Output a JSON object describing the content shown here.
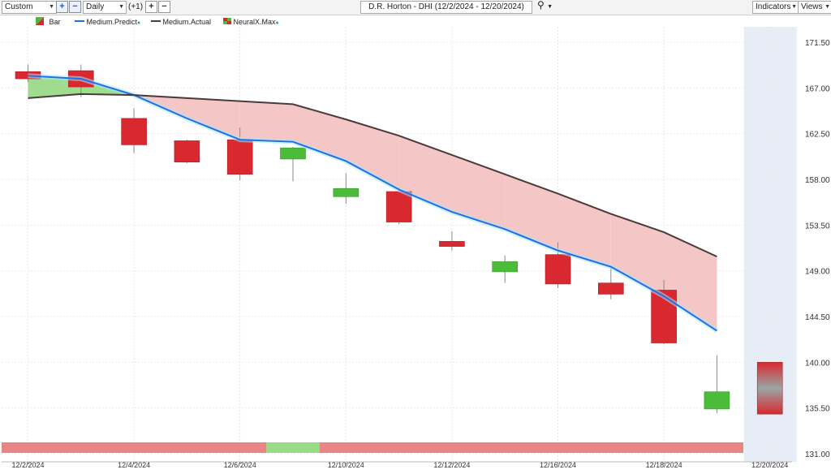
{
  "toolbar": {
    "range_select": "Custom",
    "interval_select": "Daily",
    "offset_label": "(+1)",
    "symbol_title": "D.R. Horton - DHI (12/2/2024 - 12/20/2024)",
    "indicators_label": "Indicators",
    "views_label": "Views",
    "zoom_in_icon": "plus-icon",
    "zoom_out_icon": "minus-icon",
    "search_icon": "magnifier-icon"
  },
  "legend": [
    {
      "label": "Bar",
      "swatch": "bar-icon",
      "color": "#d9282f"
    },
    {
      "label": "Medium.Predict",
      "swatch": "line",
      "color": "#1f6fe5"
    },
    {
      "label": "Medium.Actual",
      "swatch": "line",
      "color": "#4a3a3a"
    },
    {
      "label": "NeuralX.Max",
      "swatch": "flag-icon",
      "color": "#d9282f"
    }
  ],
  "colors": {
    "up": "#4cbb3a",
    "down": "#d9282f",
    "predict": "#1f6fe5",
    "actual": "#4a3a3a",
    "fill_down": "#f4c6c6",
    "fill_up": "#9fdc8f",
    "forecast_bg": "#e6edf7",
    "band_red": "#e98585",
    "band_green": "#98dc88"
  },
  "chart_data": {
    "type": "candlestick",
    "title": "D.R. Horton - DHI (12/2/2024 - 12/20/2024)",
    "ylim": [
      131.0,
      173.0
    ],
    "y_ticks": [
      "171.50",
      "167.00",
      "162.50",
      "158.00",
      "153.50",
      "149.00",
      "144.50",
      "140.00",
      "135.50",
      "131.00"
    ],
    "y_tick_values": [
      171.5,
      167.0,
      162.5,
      158.0,
      153.5,
      149.0,
      144.5,
      140.0,
      135.5,
      131.0
    ],
    "x_tick_labels": [
      "12/2/2024",
      "12/4/2024",
      "12/6/2024",
      "12/10/2024",
      "12/12/2024",
      "12/16/2024",
      "12/18/2024",
      "12/20/2024"
    ],
    "x_tick_dates": [
      "2024-12-02",
      "2024-12-04",
      "2024-12-06",
      "2024-12-10",
      "2024-12-12",
      "2024-12-16",
      "2024-12-18",
      "2024-12-20"
    ],
    "dates": [
      "2024-12-02",
      "2024-12-03",
      "2024-12-04",
      "2024-12-05",
      "2024-12-06",
      "2024-12-09",
      "2024-12-10",
      "2024-12-11",
      "2024-12-12",
      "2024-12-13",
      "2024-12-16",
      "2024-12-17",
      "2024-12-18",
      "2024-12-19",
      "2024-12-20"
    ],
    "candles": [
      {
        "date": "2024-12-02",
        "open": 168.6,
        "high": 169.3,
        "low": 167.6,
        "close": 167.9
      },
      {
        "date": "2024-12-03",
        "open": 168.7,
        "high": 169.3,
        "low": 166.1,
        "close": 167.1
      },
      {
        "date": "2024-12-04",
        "open": 164.0,
        "high": 165.0,
        "low": 160.6,
        "close": 161.4
      },
      {
        "date": "2024-12-05",
        "open": 161.8,
        "high": 161.9,
        "low": 159.6,
        "close": 159.7
      },
      {
        "date": "2024-12-06",
        "open": 161.9,
        "high": 163.1,
        "low": 157.9,
        "close": 158.5
      },
      {
        "date": "2024-12-09",
        "open": 160.0,
        "high": 161.2,
        "low": 157.8,
        "close": 161.1
      },
      {
        "date": "2024-12-10",
        "open": 156.3,
        "high": 158.6,
        "low": 155.6,
        "close": 157.1
      },
      {
        "date": "2024-12-11",
        "open": 156.8,
        "high": 157.2,
        "low": 153.6,
        "close": 153.8
      },
      {
        "date": "2024-12-12",
        "open": 151.9,
        "high": 152.9,
        "low": 151.0,
        "close": 151.4
      },
      {
        "date": "2024-12-13",
        "open": 148.9,
        "high": 150.5,
        "low": 147.8,
        "close": 149.9
      },
      {
        "date": "2024-12-16",
        "open": 150.6,
        "high": 151.8,
        "low": 147.3,
        "close": 147.7
      },
      {
        "date": "2024-12-17",
        "open": 147.8,
        "high": 149.4,
        "low": 146.2,
        "close": 146.7
      },
      {
        "date": "2024-12-18",
        "open": 147.1,
        "high": 148.1,
        "low": 141.8,
        "close": 141.9
      },
      {
        "date": "2024-12-19",
        "open": 135.4,
        "high": 140.7,
        "low": 135.0,
        "close": 137.1
      }
    ],
    "forecast_bar": {
      "date": "2024-12-20",
      "high": 140.0,
      "low": 134.9
    },
    "medium_predict": [
      {
        "date": "2024-12-02",
        "value": 168.2
      },
      {
        "date": "2024-12-03",
        "value": 167.9
      },
      {
        "date": "2024-12-04",
        "value": 166.3
      },
      {
        "date": "2024-12-05",
        "value": 164.0
      },
      {
        "date": "2024-12-06",
        "value": 161.9
      },
      {
        "date": "2024-12-09",
        "value": 161.7
      },
      {
        "date": "2024-12-10",
        "value": 159.8
      },
      {
        "date": "2024-12-11",
        "value": 157.0
      },
      {
        "date": "2024-12-12",
        "value": 154.8
      },
      {
        "date": "2024-12-13",
        "value": 153.1
      },
      {
        "date": "2024-12-16",
        "value": 151.0
      },
      {
        "date": "2024-12-17",
        "value": 149.4
      },
      {
        "date": "2024-12-18",
        "value": 146.5
      },
      {
        "date": "2024-12-19",
        "value": 143.1
      }
    ],
    "medium_actual": [
      {
        "date": "2024-12-02",
        "value": 166.0
      },
      {
        "date": "2024-12-03",
        "value": 166.4
      },
      {
        "date": "2024-12-04",
        "value": 166.3
      },
      {
        "date": "2024-12-05",
        "value": 166.0
      },
      {
        "date": "2024-12-06",
        "value": 165.7
      },
      {
        "date": "2024-12-09",
        "value": 165.4
      },
      {
        "date": "2024-12-10",
        "value": 163.9
      },
      {
        "date": "2024-12-11",
        "value": 162.3
      },
      {
        "date": "2024-12-12",
        "value": 160.4
      },
      {
        "date": "2024-12-13",
        "value": 158.5
      },
      {
        "date": "2024-12-16",
        "value": 156.6
      },
      {
        "date": "2024-12-17",
        "value": 154.6
      },
      {
        "date": "2024-12-18",
        "value": 152.8
      },
      {
        "date": "2024-12-19",
        "value": 150.4
      }
    ],
    "neuralx_band": [
      {
        "from": "2024-12-02",
        "to": "2024-12-06",
        "signal": "down"
      },
      {
        "from": "2024-12-09",
        "to": "2024-12-09",
        "signal": "up"
      },
      {
        "from": "2024-12-10",
        "to": "2024-12-19",
        "signal": "down"
      }
    ],
    "grid": true
  }
}
